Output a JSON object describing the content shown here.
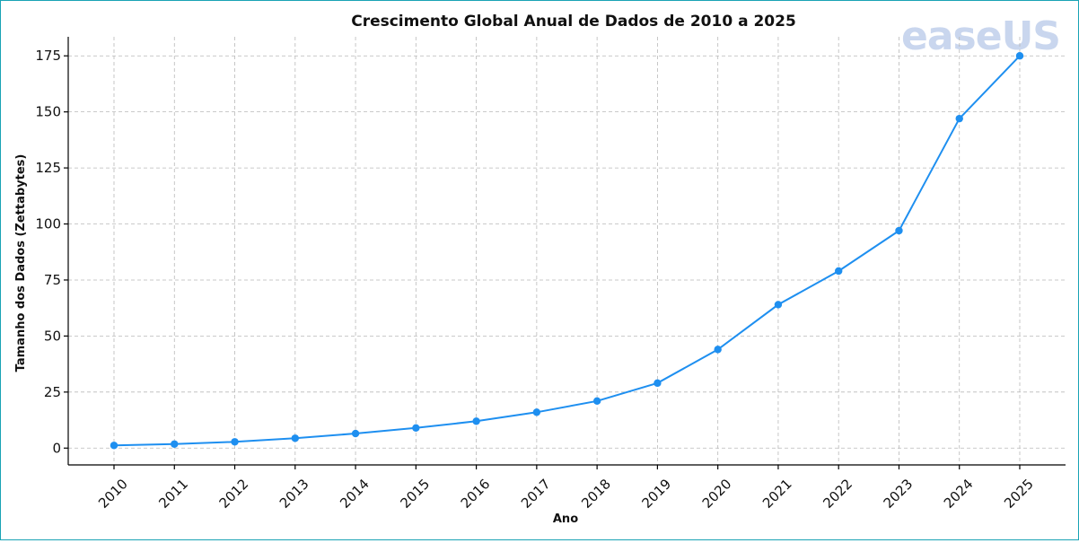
{
  "watermark": {
    "text": "easeUS"
  },
  "colors": {
    "series": "#1e8ff0",
    "frame": "#19a3b5",
    "grid": "#b9b9b9"
  },
  "chart_data": {
    "type": "line",
    "title": "Crescimento Global Anual de Dados de 2010 a 2025",
    "xlabel": "Ano",
    "ylabel": "Tamanho dos Dados (Zettabytes)",
    "categories": [
      "2010",
      "2011",
      "2012",
      "2013",
      "2014",
      "2015",
      "2016",
      "2017",
      "2018",
      "2019",
      "2020",
      "2021",
      "2022",
      "2023",
      "2024",
      "2025"
    ],
    "series": [
      {
        "values": [
          1.2,
          1.8,
          2.8,
          4.4,
          6.5,
          9,
          12,
          16,
          21,
          29,
          44,
          64,
          79,
          97,
          147,
          175
        ]
      }
    ],
    "yticks": [
      0,
      25,
      50,
      75,
      100,
      125,
      150,
      175
    ],
    "ylim": [
      -7.5,
      183.5
    ],
    "grid": true,
    "legend": "none"
  }
}
